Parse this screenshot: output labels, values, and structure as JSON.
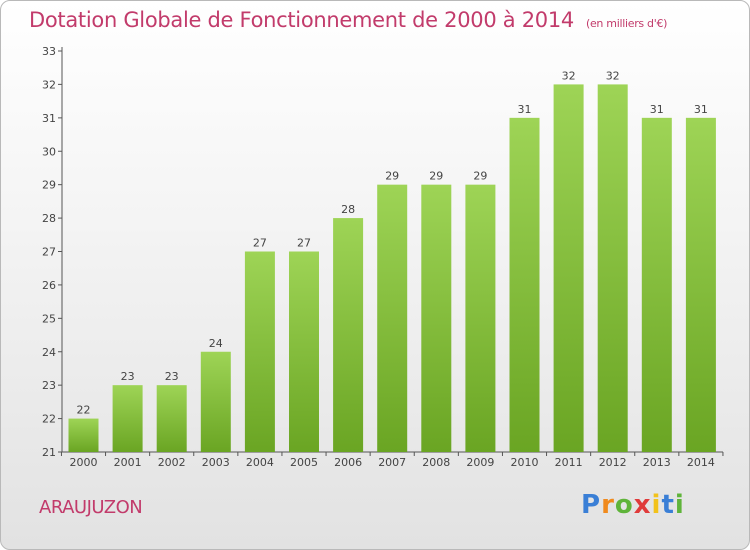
{
  "header": {
    "title": "Dotation Globale de Fonctionnement de 2000 à 2014",
    "unit": "(en milliers d'€)"
  },
  "footer": {
    "commune": "ARAUJUZON",
    "logo_text": "Proxiti"
  },
  "colors": {
    "title": "#c23b6b",
    "bar_light": "#9ed456",
    "bar_dark": "#6aa523",
    "logo_letters": [
      "#3a7fd6",
      "#f08a1d",
      "#5fb43a",
      "#e03b3b",
      "#f2c21b",
      "#3a7fd6",
      "#5fb43a"
    ]
  },
  "chart_data": {
    "type": "bar",
    "title": "Dotation Globale de Fonctionnement de 2000 à 2014",
    "subtitle": "(en milliers d'€)",
    "categories": [
      "2000",
      "2001",
      "2002",
      "2003",
      "2004",
      "2005",
      "2006",
      "2007",
      "2008",
      "2009",
      "2010",
      "2011",
      "2012",
      "2013",
      "2014"
    ],
    "values": [
      22,
      23,
      23,
      24,
      27,
      27,
      28,
      29,
      29,
      29,
      31,
      32,
      32,
      31,
      31
    ],
    "ylim": [
      21,
      33
    ],
    "yticks": [
      "21",
      "22",
      "23",
      "24",
      "25",
      "26",
      "27",
      "28",
      "29",
      "30",
      "31",
      "32",
      "33"
    ],
    "grid": false,
    "legend": "none"
  }
}
